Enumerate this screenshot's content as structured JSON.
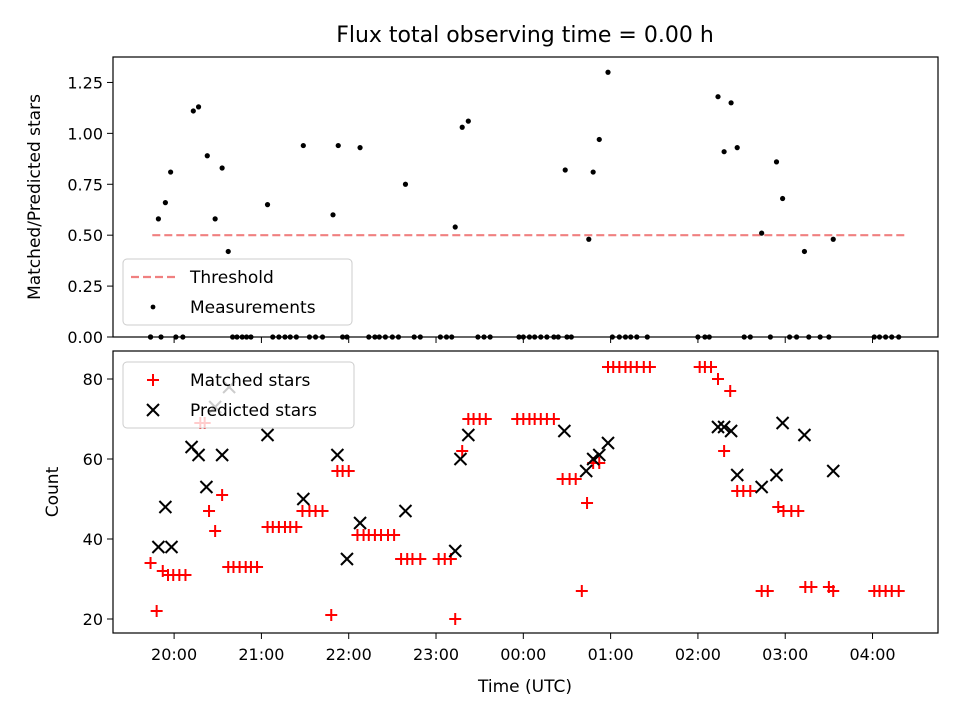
{
  "title": "Flux total observing time = 0.00 h",
  "chart_data": [
    {
      "type": "scatter",
      "ylabel": "Matched/Predicted stars",
      "ylim": [
        0,
        1.375
      ],
      "xlim_hours": [
        19.3,
        28.75
      ],
      "yticks": [
        "0.00",
        "0.25",
        "0.50",
        "0.75",
        "1.00",
        "1.25"
      ],
      "ytick_values": [
        0,
        0.25,
        0.5,
        0.75,
        1.0,
        1.25
      ],
      "legend": {
        "placement": "lower-left",
        "entries": [
          "Threshold",
          "Measurements"
        ]
      },
      "threshold": {
        "name": "Threshold",
        "y": 0.5,
        "x_start": 19.75,
        "x_end": 28.4,
        "color": "#f08080"
      },
      "measurements": {
        "name": "Measurements",
        "color": "#000000",
        "x": [
          19.73,
          19.82,
          19.9,
          19.96,
          20.22,
          20.28,
          20.38,
          20.47,
          20.55,
          20.62,
          21.07,
          21.48,
          21.88,
          21.82,
          22.13,
          22.65,
          23.22,
          23.3,
          23.37,
          24.48,
          24.75,
          24.8,
          24.87,
          24.97,
          26.23,
          26.3,
          26.38,
          26.45,
          26.73,
          26.9,
          26.97,
          27.22,
          27.55
        ],
        "y": [
          0.0,
          0.58,
          0.66,
          0.81,
          1.11,
          1.13,
          0.89,
          0.58,
          0.83,
          0.42,
          0.65,
          0.94,
          0.94,
          0.6,
          0.93,
          0.75,
          0.54,
          1.03,
          1.06,
          0.82,
          0.48,
          0.81,
          0.97,
          1.3,
          1.18,
          0.91,
          1.15,
          0.93,
          0.51,
          0.86,
          0.68,
          0.42,
          0.48
        ]
      },
      "zeros_x": [
        19.73,
        19.85,
        20.02,
        20.1,
        20.67,
        20.72,
        20.78,
        20.83,
        20.88,
        21.13,
        21.2,
        21.27,
        21.33,
        21.4,
        21.55,
        21.62,
        21.7,
        21.93,
        21.98,
        22.23,
        22.3,
        22.35,
        22.42,
        22.5,
        22.57,
        22.75,
        22.82,
        23.05,
        23.12,
        23.18,
        23.48,
        23.55,
        23.62,
        23.95,
        24.0,
        24.07,
        24.13,
        24.2,
        24.27,
        24.35,
        24.4,
        24.5,
        24.55,
        25.02,
        25.1,
        25.17,
        25.23,
        25.3,
        25.42,
        26.0,
        26.08,
        26.13,
        26.53,
        26.6,
        26.83,
        27.05,
        27.13,
        27.27,
        27.4,
        27.5,
        28.02,
        28.08,
        28.15,
        28.22,
        28.3
      ]
    },
    {
      "type": "scatter",
      "xlabel": "Time (UTC)",
      "ylabel": "Count",
      "ylim": [
        16.5,
        87
      ],
      "xlim_hours": [
        19.3,
        28.75
      ],
      "yticks": [
        "20",
        "40",
        "60",
        "80"
      ],
      "ytick_values": [
        20,
        40,
        60,
        80
      ],
      "xticks": [
        "20:00",
        "21:00",
        "22:00",
        "23:00",
        "00:00",
        "01:00",
        "02:00",
        "03:00",
        "04:00"
      ],
      "xtick_hours": [
        20,
        21,
        22,
        23,
        24,
        25,
        26,
        27,
        28
      ],
      "legend": {
        "placement": "upper-left",
        "entries": [
          "Matched stars",
          "Predicted stars"
        ]
      },
      "series": [
        {
          "name": "Matched stars",
          "marker": "plus",
          "color": "#ff0000",
          "x": [
            19.73,
            19.8,
            19.87,
            19.93,
            19.99,
            20.06,
            20.13,
            20.3,
            20.35,
            20.4,
            20.47,
            20.55,
            20.62,
            20.68,
            20.75,
            20.82,
            20.88,
            20.95,
            21.07,
            21.13,
            21.2,
            21.27,
            21.33,
            21.4,
            21.47,
            21.55,
            21.62,
            21.7,
            21.8,
            21.87,
            21.93,
            22.0,
            22.1,
            22.17,
            22.23,
            22.3,
            22.37,
            22.45,
            22.52,
            22.6,
            22.67,
            22.73,
            22.82,
            23.03,
            23.1,
            23.17,
            23.22,
            23.3,
            23.37,
            23.43,
            23.5,
            23.57,
            23.93,
            24.0,
            24.07,
            24.13,
            24.2,
            24.27,
            24.35,
            24.45,
            24.53,
            24.6,
            24.67,
            24.73,
            24.8,
            24.87,
            24.97,
            25.03,
            25.1,
            25.17,
            25.23,
            25.3,
            25.38,
            25.45,
            26.02,
            26.08,
            26.15,
            26.23,
            26.3,
            26.37,
            26.45,
            26.52,
            26.6,
            26.73,
            26.8,
            26.92,
            26.98,
            27.07,
            27.15,
            27.23,
            27.3,
            27.5,
            27.55,
            28.02,
            28.08,
            28.15,
            28.22,
            28.3
          ],
          "y": [
            34,
            22,
            32,
            31,
            31,
            31,
            31,
            69,
            69,
            47,
            42,
            51,
            33,
            33,
            33,
            33,
            33,
            33,
            43,
            43,
            43,
            43,
            43,
            43,
            47,
            47,
            47,
            47,
            21,
            57,
            57,
            57,
            41,
            41,
            41,
            41,
            41,
            41,
            41,
            35,
            35,
            35,
            35,
            35,
            35,
            35,
            20,
            62,
            70,
            70,
            70,
            70,
            70,
            70,
            70,
            70,
            70,
            70,
            70,
            55,
            55,
            55,
            27,
            49,
            59,
            59,
            83,
            83,
            83,
            83,
            83,
            83,
            83,
            83,
            83,
            83,
            83,
            80,
            62,
            77,
            52,
            52,
            52,
            27,
            27,
            48,
            47,
            47,
            47,
            28,
            28,
            28,
            27,
            27,
            27,
            27,
            27,
            27
          ]
        },
        {
          "name": "Predicted stars",
          "marker": "x",
          "color": "#000000",
          "x": [
            19.82,
            19.9,
            19.97,
            20.2,
            20.28,
            20.37,
            20.47,
            20.55,
            20.63,
            21.07,
            21.48,
            21.87,
            21.98,
            22.13,
            22.65,
            23.22,
            23.28,
            23.37,
            24.47,
            24.72,
            24.8,
            24.87,
            24.97,
            26.23,
            26.3,
            26.38,
            26.45,
            26.73,
            26.9,
            26.97,
            27.22,
            27.55
          ],
          "y": [
            38,
            48,
            38,
            63,
            61,
            53,
            73,
            61,
            78,
            66,
            50,
            61,
            35,
            44,
            47,
            37,
            60,
            66,
            67,
            57,
            60,
            61,
            64,
            68,
            68,
            67,
            56,
            53,
            56,
            69,
            66,
            57
          ]
        }
      ]
    }
  ]
}
